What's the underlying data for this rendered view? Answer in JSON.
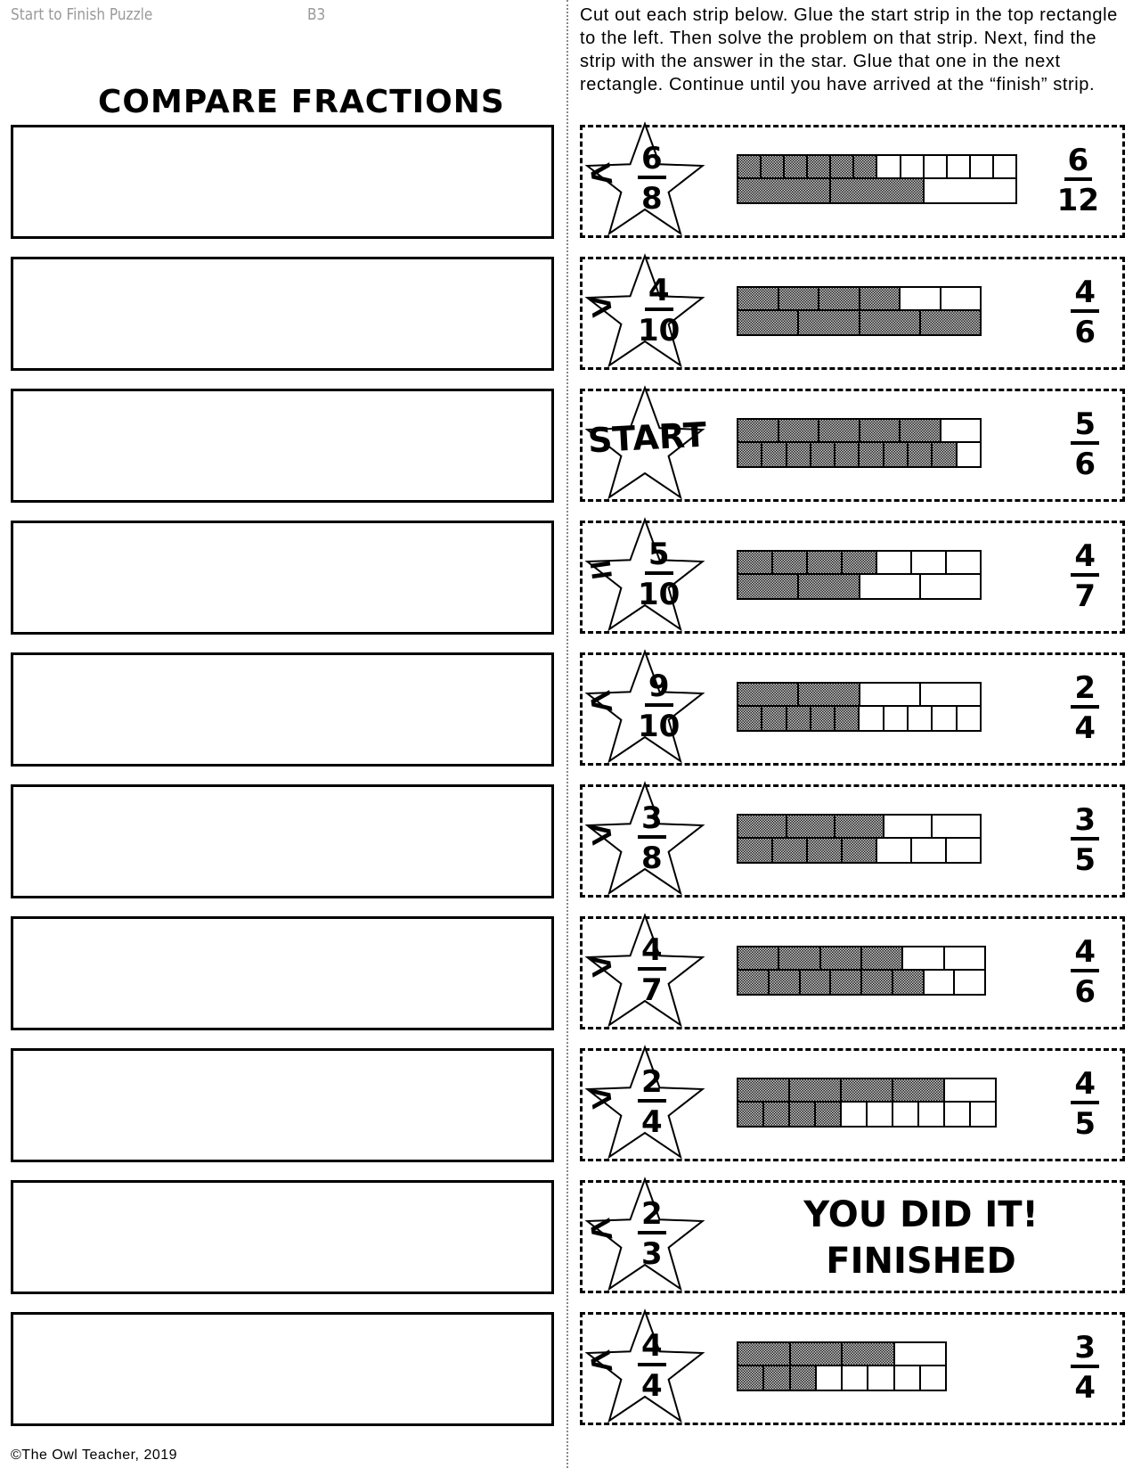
{
  "header": {
    "left": "Start to Finish Puzzle",
    "code": "B3"
  },
  "title": "COMPARE FRACTIONS",
  "instructions": "Cut out each strip below.  Glue the start strip in the top rectangle to the left.  Then solve the problem on that strip.  Next, find the strip with the answer in the star.  Glue that one in the next rectangle. Continue until you have arrived at the “finish” strip.",
  "glue_boxes": 10,
  "strips": [
    {
      "symbol": "<",
      "star_num": "6",
      "star_den": "8",
      "bars": [
        {
          "parts": 12,
          "shaded": 6
        },
        {
          "parts": 3,
          "shaded": 2
        }
      ],
      "ans_num": "6",
      "ans_den": "12"
    },
    {
      "symbol": ">",
      "star_num": "4",
      "star_den": "10",
      "bars": [
        {
          "parts": 6,
          "shaded": 4
        },
        {
          "parts": 4,
          "shaded": 4
        }
      ],
      "ans_num": "4",
      "ans_den": "6"
    },
    {
      "star_word": "START",
      "bars": [
        {
          "parts": 6,
          "shaded": 5
        },
        {
          "parts": 10,
          "shaded": 9
        }
      ],
      "ans_num": "5",
      "ans_den": "6"
    },
    {
      "symbol": "=",
      "star_num": "5",
      "star_den": "10",
      "bars": [
        {
          "parts": 7,
          "shaded": 4
        },
        {
          "parts": 4,
          "shaded": 2
        }
      ],
      "ans_num": "4",
      "ans_den": "7"
    },
    {
      "symbol": "<",
      "star_num": "9",
      "star_den": "10",
      "bars": [
        {
          "parts": 4,
          "shaded": 2
        },
        {
          "parts": 10,
          "shaded": 5
        }
      ],
      "ans_num": "2",
      "ans_den": "4"
    },
    {
      "symbol": ">",
      "star_num": "3",
      "star_den": "8",
      "bars": [
        {
          "parts": 5,
          "shaded": 3
        },
        {
          "parts": 7,
          "shaded": 4
        }
      ],
      "ans_num": "3",
      "ans_den": "5"
    },
    {
      "symbol": ">",
      "star_num": "4",
      "star_den": "7",
      "bars": [
        {
          "parts": 6,
          "shaded": 4
        },
        {
          "parts": 8,
          "shaded": 6
        }
      ],
      "ans_num": "4",
      "ans_den": "6"
    },
    {
      "symbol": ">",
      "star_num": "2",
      "star_den": "4",
      "bars": [
        {
          "parts": 5,
          "shaded": 4
        },
        {
          "parts": 10,
          "shaded": 4
        }
      ],
      "ans_num": "4",
      "ans_den": "5"
    },
    {
      "symbol": "<",
      "star_num": "2",
      "star_den": "3",
      "finish_line1": "YOU DID IT!",
      "finish_line2": "FINISHED"
    },
    {
      "symbol": "<",
      "star_num": "4",
      "star_den": "4",
      "bars": [
        {
          "parts": 4,
          "shaded": 3
        },
        {
          "parts": 8,
          "shaded": 3
        }
      ],
      "ans_num": "3",
      "ans_den": "4"
    }
  ],
  "footer": "©The Owl Teacher, 2019"
}
